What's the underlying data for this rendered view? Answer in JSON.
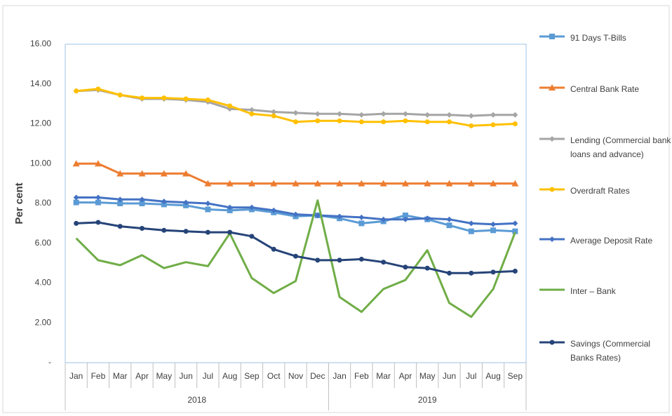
{
  "chart_data": {
    "type": "line",
    "y_label": "Per cent",
    "categories": [
      {
        "month": "Jan",
        "year": "2018"
      },
      {
        "month": "Feb",
        "year": "2018"
      },
      {
        "month": "Mar",
        "year": "2018"
      },
      {
        "month": "Apr",
        "year": "2018"
      },
      {
        "month": "May",
        "year": "2018"
      },
      {
        "month": "Jun",
        "year": "2018"
      },
      {
        "month": "Jul",
        "year": "2018"
      },
      {
        "month": "Aug",
        "year": "2018"
      },
      {
        "month": "Sep",
        "year": "2018"
      },
      {
        "month": "Oct",
        "year": "2018"
      },
      {
        "month": "Nov",
        "year": "2018"
      },
      {
        "month": "Dec",
        "year": "2018"
      },
      {
        "month": "Jan",
        "year": "2019"
      },
      {
        "month": "Feb",
        "year": "2019"
      },
      {
        "month": "Mar",
        "year": "2019"
      },
      {
        "month": "Apr",
        "year": "2019"
      },
      {
        "month": "May",
        "year": "2019"
      },
      {
        "month": "Jun",
        "year": "2019"
      },
      {
        "month": "Jul",
        "year": "2019"
      },
      {
        "month": "Aug",
        "year": "2019"
      },
      {
        "month": "Sep",
        "year": "2019"
      }
    ],
    "series": [
      {
        "name": "91  Days T-Bills",
        "color": "#5b9bd5",
        "marker": "square",
        "values": [
          8.05,
          8.05,
          8.0,
          8.0,
          7.95,
          7.9,
          7.7,
          7.65,
          7.7,
          7.55,
          7.35,
          7.4,
          7.25,
          7.0,
          7.1,
          7.4,
          7.2,
          6.9,
          6.6,
          6.65,
          6.6
        ]
      },
      {
        "name": "Central Bank Rate",
        "color": "#ed7d31",
        "marker": "triangle",
        "values": [
          10,
          10,
          9.5,
          9.5,
          9.5,
          9.5,
          9,
          9,
          9,
          9,
          9,
          9,
          9,
          9,
          9,
          9,
          9,
          9,
          9,
          9,
          9
        ]
      },
      {
        "name": "Lending (Commercial bank loans and advance)",
        "color": "#a5a5a5",
        "marker": "diamond",
        "values": [
          13.65,
          13.7,
          13.45,
          13.25,
          13.25,
          13.2,
          13.1,
          12.75,
          12.7,
          12.6,
          12.55,
          12.5,
          12.5,
          12.45,
          12.5,
          12.5,
          12.45,
          12.45,
          12.4,
          12.45,
          12.45
        ]
      },
      {
        "name": "Overdraft Rates",
        "color": "#ffc000",
        "marker": "circle",
        "values": [
          13.65,
          13.75,
          13.45,
          13.3,
          13.3,
          13.25,
          13.2,
          12.9,
          12.5,
          12.4,
          12.1,
          12.15,
          12.15,
          12.1,
          12.1,
          12.15,
          12.1,
          12.1,
          11.9,
          11.95,
          12.0
        ]
      },
      {
        "name": "Average Deposit Rate",
        "color": "#4472c4",
        "marker": "diamond",
        "values": [
          8.3,
          8.3,
          8.2,
          8.2,
          8.1,
          8.05,
          8.0,
          7.8,
          7.8,
          7.65,
          7.45,
          7.4,
          7.35,
          7.3,
          7.2,
          7.2,
          7.25,
          7.2,
          7.0,
          6.95,
          7.0
        ]
      },
      {
        "name": "Inter – Bank",
        "color": "#70ad47",
        "marker": "none",
        "values": [
          6.25,
          5.15,
          4.9,
          5.4,
          4.75,
          5.05,
          4.85,
          6.5,
          4.25,
          3.5,
          4.1,
          8.15,
          3.3,
          2.55,
          3.7,
          4.15,
          5.65,
          3.0,
          2.3,
          3.7,
          6.55
        ]
      },
      {
        "name": "Savings (Commercial Banks Rates)",
        "color": "#264478",
        "marker": "circle",
        "values": [
          7.0,
          7.05,
          6.85,
          6.75,
          6.65,
          6.6,
          6.55,
          6.55,
          6.35,
          5.7,
          5.35,
          5.15,
          5.15,
          5.2,
          5.05,
          4.8,
          4.75,
          4.5,
          4.5,
          4.55,
          4.6
        ]
      }
    ],
    "ylim": [
      0,
      16
    ],
    "yticks": [
      {
        "value": 0,
        "label": "-"
      },
      {
        "value": 2,
        "label": "2.00"
      },
      {
        "value": 4,
        "label": "4.00"
      },
      {
        "value": 6,
        "label": "6.00"
      },
      {
        "value": 8,
        "label": "8.00"
      },
      {
        "value": 10,
        "label": "10.00"
      },
      {
        "value": 12,
        "label": "12.00"
      },
      {
        "value": 14,
        "label": "14.00"
      },
      {
        "value": 16,
        "label": "16.00"
      }
    ],
    "grid": false,
    "legend": "right"
  }
}
